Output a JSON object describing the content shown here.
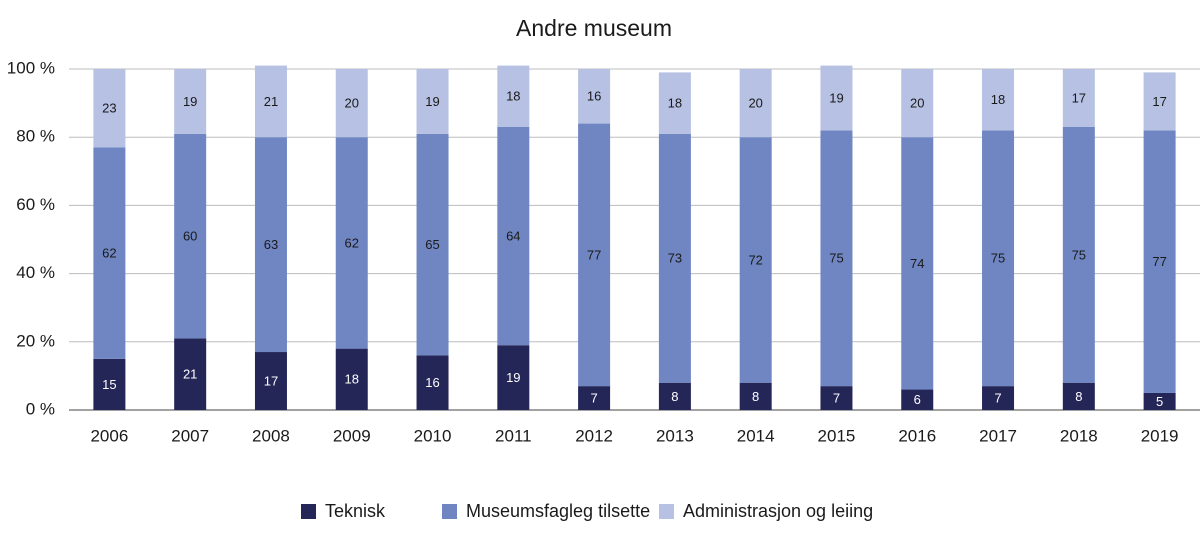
{
  "chart_data": {
    "type": "stacked-bar",
    "title": "Andre museum",
    "categories": [
      "2006",
      "2007",
      "2008",
      "2009",
      "2010",
      "2011",
      "2012",
      "2013",
      "2014",
      "2015",
      "2016",
      "2017",
      "2018",
      "2019"
    ],
    "series": [
      {
        "name": "Teknisk",
        "color": "#252658",
        "values": [
          15,
          21,
          17,
          18,
          16,
          19,
          7,
          8,
          8,
          7,
          6,
          7,
          8,
          5
        ]
      },
      {
        "name": "Museumsfagleg tilsette",
        "color": "#6f86c3",
        "values": [
          62,
          60,
          63,
          62,
          65,
          64,
          77,
          73,
          72,
          75,
          74,
          75,
          75,
          77
        ]
      },
      {
        "name": "Administrasjon og leiing",
        "color": "#b7c1e3",
        "values": [
          23,
          19,
          21,
          20,
          19,
          18,
          16,
          18,
          20,
          19,
          20,
          18,
          17,
          17
        ]
      }
    ],
    "ylim": [
      0,
      100
    ],
    "yticks": [
      {
        "value": 0,
        "label": "0 %"
      },
      {
        "value": 20,
        "label": "20 %"
      },
      {
        "value": 40,
        "label": "40 %"
      },
      {
        "value": 60,
        "label": "60 %"
      },
      {
        "value": 80,
        "label": "80 %"
      },
      {
        "value": 100,
        "label": "100 %"
      }
    ],
    "grid": true
  }
}
